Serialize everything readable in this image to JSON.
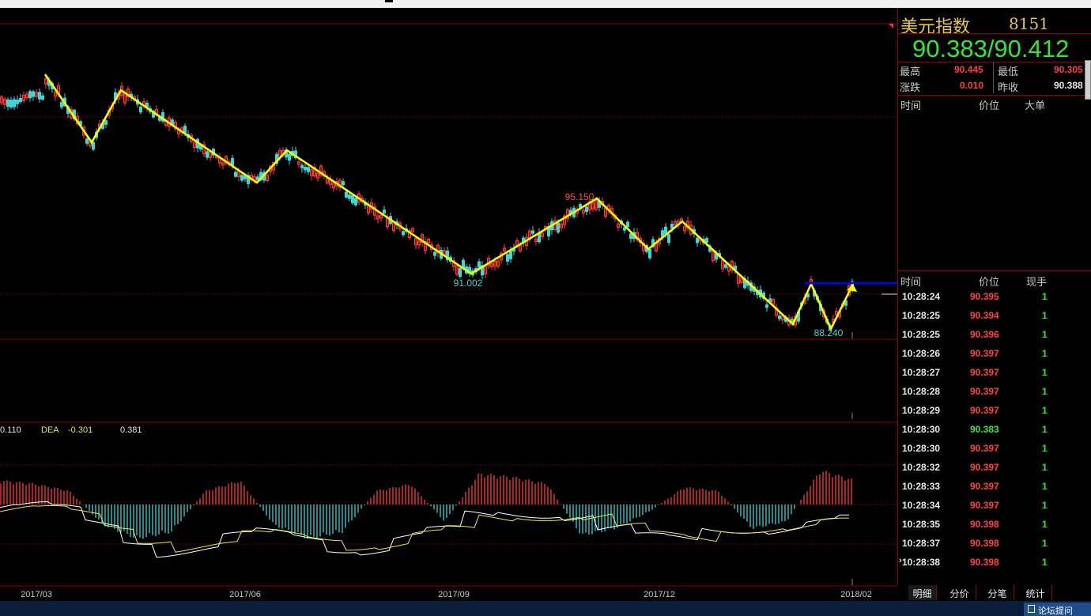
{
  "panel": {
    "title": "美元指数",
    "code": "8151",
    "bid_ask": "90.383/90.412",
    "stats": [
      {
        "label": "最高",
        "value": "90.445",
        "label2": "最低",
        "value2": "90.305"
      },
      {
        "label": "涨跌",
        "value": "0.010",
        "label2": "昨收",
        "value2": "90.388"
      }
    ],
    "headers1": {
      "time": "时间",
      "price": "价位",
      "size": "大单"
    },
    "headers2": {
      "time": "时间",
      "price": "价位",
      "size": "现手"
    },
    "ticks": [
      {
        "time": "10:28:24",
        "price": "90.395",
        "size": "1"
      },
      {
        "time": "10:28:25",
        "price": "90.394",
        "size": "1"
      },
      {
        "time": "10:28:25",
        "price": "90.396",
        "size": "1"
      },
      {
        "time": "10:28:26",
        "price": "90.397",
        "size": "1"
      },
      {
        "time": "10:28:27",
        "price": "90.397",
        "size": "1"
      },
      {
        "time": "10:28:28",
        "price": "90.397",
        "size": "1"
      },
      {
        "time": "10:28:29",
        "price": "90.397",
        "size": "1"
      },
      {
        "time": "10:28:30",
        "price": "90.383",
        "size": "1",
        "down": true
      },
      {
        "time": "10:28:30",
        "price": "90.397",
        "size": "1"
      },
      {
        "time": "10:28:32",
        "price": "90.397",
        "size": "1"
      },
      {
        "time": "10:28:33",
        "price": "90.397",
        "size": "1"
      },
      {
        "time": "10:28:34",
        "price": "90.397",
        "size": "1"
      },
      {
        "time": "10:28:35",
        "price": "90.398",
        "size": "1"
      },
      {
        "time": "10:28:37",
        "price": "90.398",
        "size": "1"
      },
      {
        "time": "10:28:38",
        "price": "90.398",
        "size": "1",
        "current": true
      }
    ],
    "tabs": [
      "明细",
      "分价",
      "分笔",
      "统计"
    ]
  },
  "bottom": {
    "button": "论坛提问"
  },
  "chart_data": {
    "type": "line",
    "x_ticks": [
      "2017/03",
      "2017/06",
      "2017/09",
      "2017/12",
      "2018/02"
    ],
    "price_annotations": [
      {
        "text": "95.150",
        "kind": "high",
        "x": "2017/10",
        "y": 95.15
      },
      {
        "text": "91.002",
        "kind": "low",
        "x": "2017/09",
        "y": 91.002
      },
      {
        "text": "88.240",
        "kind": "low",
        "x": "2018/02",
        "y": 88.24
      }
    ],
    "trend_lines": [
      {
        "name": "",
        "color": "#ffff00",
        "points": [
          [
            "2017/02",
            102.2
          ],
          [
            "2017/03",
            99.2
          ],
          [
            "2017/04",
            101.0
          ],
          [
            "2017/06",
            96.5
          ],
          [
            "2017/07",
            98.5
          ],
          [
            "2017/09",
            91.0
          ],
          [
            "2017/10",
            95.15
          ],
          [
            "2017/11",
            92.3
          ],
          [
            "2017/12",
            94.0
          ],
          [
            "2018/01",
            88.5
          ],
          [
            "2018/01",
            91.5
          ],
          [
            "2018/02",
            88.24
          ],
          [
            "2018/02",
            91.4
          ]
        ]
      },
      {
        "name": "",
        "color": "#0000ff",
        "points": [
          [
            "2018/01",
            91.5
          ],
          [
            "2018/02",
            91.5
          ]
        ]
      }
    ],
    "macd": {
      "dif_label": "0.110",
      "dea_label": "DEA",
      "dea_value": "-0.301",
      "macd_value": "0.381",
      "histogram": [
        0.35,
        0.3,
        0.2,
        -0.3,
        -0.5,
        -0.4,
        0.2,
        0.35,
        -0.3,
        -0.5,
        -0.4,
        0.2,
        0.3,
        -0.25,
        0.45,
        0.4,
        0.3,
        -0.45,
        -0.35,
        -0.1,
        0.25,
        0.2,
        -0.35,
        -0.25,
        0.5,
        0.35
      ]
    },
    "colors": {
      "up": "#ff3c3c",
      "down": "#3fd6d6",
      "trend": "#ffff00",
      "level": "#0000ff"
    }
  }
}
